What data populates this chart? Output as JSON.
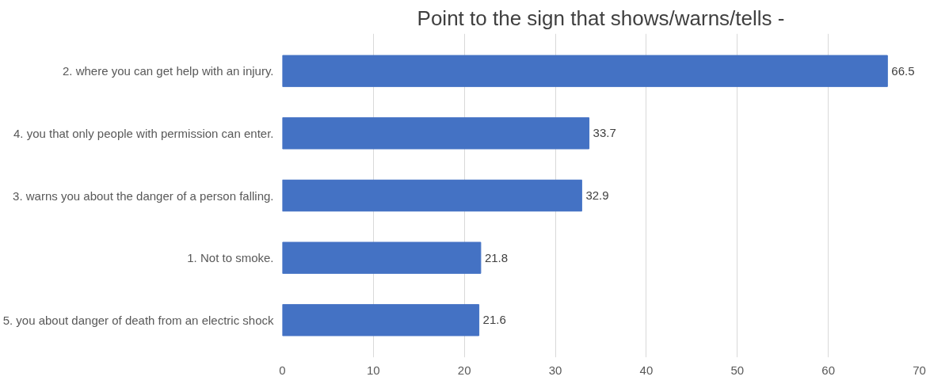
{
  "chart_data": {
    "type": "bar",
    "orientation": "horizontal",
    "title": "Point to the sign that shows/warns/tells -",
    "categories": [
      "2. where you can get help with an injury.",
      "4. you that only people with permission can enter.",
      "3. warns you about the danger of a person falling.",
      "1. Not to smoke.",
      "5. you about danger of death from an electric shock"
    ],
    "values": [
      66.5,
      33.7,
      32.9,
      21.8,
      21.6
    ],
    "color": "#4472c4",
    "xlim": [
      0,
      70
    ],
    "xticks": [
      0,
      10,
      20,
      30,
      40,
      50,
      60,
      70
    ],
    "grid": "x",
    "data_labels": true
  }
}
